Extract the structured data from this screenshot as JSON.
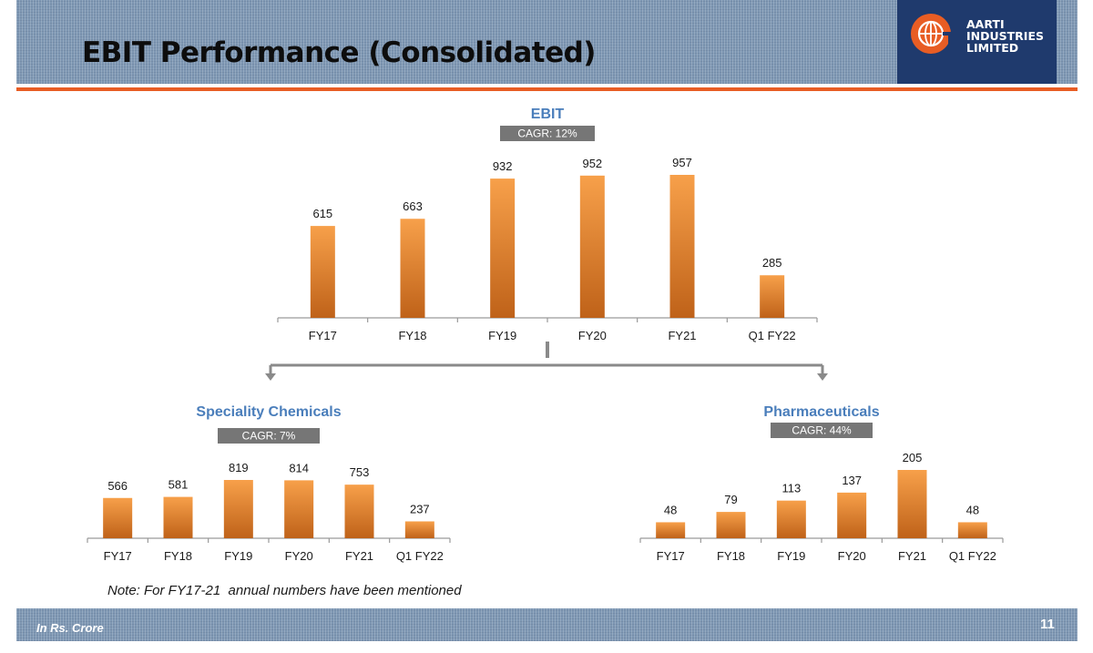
{
  "slide": {
    "title": "EBIT Performance (Consolidated)",
    "logo_lines": [
      "AARTI",
      "INDUSTRIES",
      "LIMITED"
    ],
    "note": "Note: For FY17-21  annual numbers have been mentioned",
    "footer_note": "In Rs. Crore",
    "page_number": "11"
  },
  "colors": {
    "bar_top": "#f7a04a",
    "bar_bottom": "#bf6219",
    "title_blue": "#4a7ebb",
    "cagr_grey": "#767676",
    "accent_orange": "#e85d24",
    "navy": "#1f3a6d"
  },
  "chart_data": [
    {
      "type": "bar",
      "title": "EBIT",
      "badge": "CAGR: 12%",
      "categories": [
        "FY17",
        "FY18",
        "FY19",
        "FY20",
        "FY21",
        "Q1 FY22"
      ],
      "values": [
        615,
        663,
        932,
        952,
        957,
        285
      ],
      "ylim": [
        0,
        1000
      ]
    },
    {
      "type": "bar",
      "title": "Speciality Chemicals",
      "badge": "CAGR: 7%",
      "categories": [
        "FY17",
        "FY18",
        "FY19",
        "FY20",
        "FY21",
        "Q1 FY22"
      ],
      "values": [
        566,
        581,
        819,
        814,
        753,
        237
      ],
      "ylim": [
        0,
        850
      ]
    },
    {
      "type": "bar",
      "title": "Pharmaceuticals",
      "badge": "CAGR: 44%",
      "categories": [
        "FY17",
        "FY18",
        "FY19",
        "FY20",
        "FY21",
        "Q1 FY22"
      ],
      "values": [
        48,
        79,
        113,
        137,
        205,
        48
      ],
      "ylim": [
        0,
        220
      ]
    }
  ]
}
